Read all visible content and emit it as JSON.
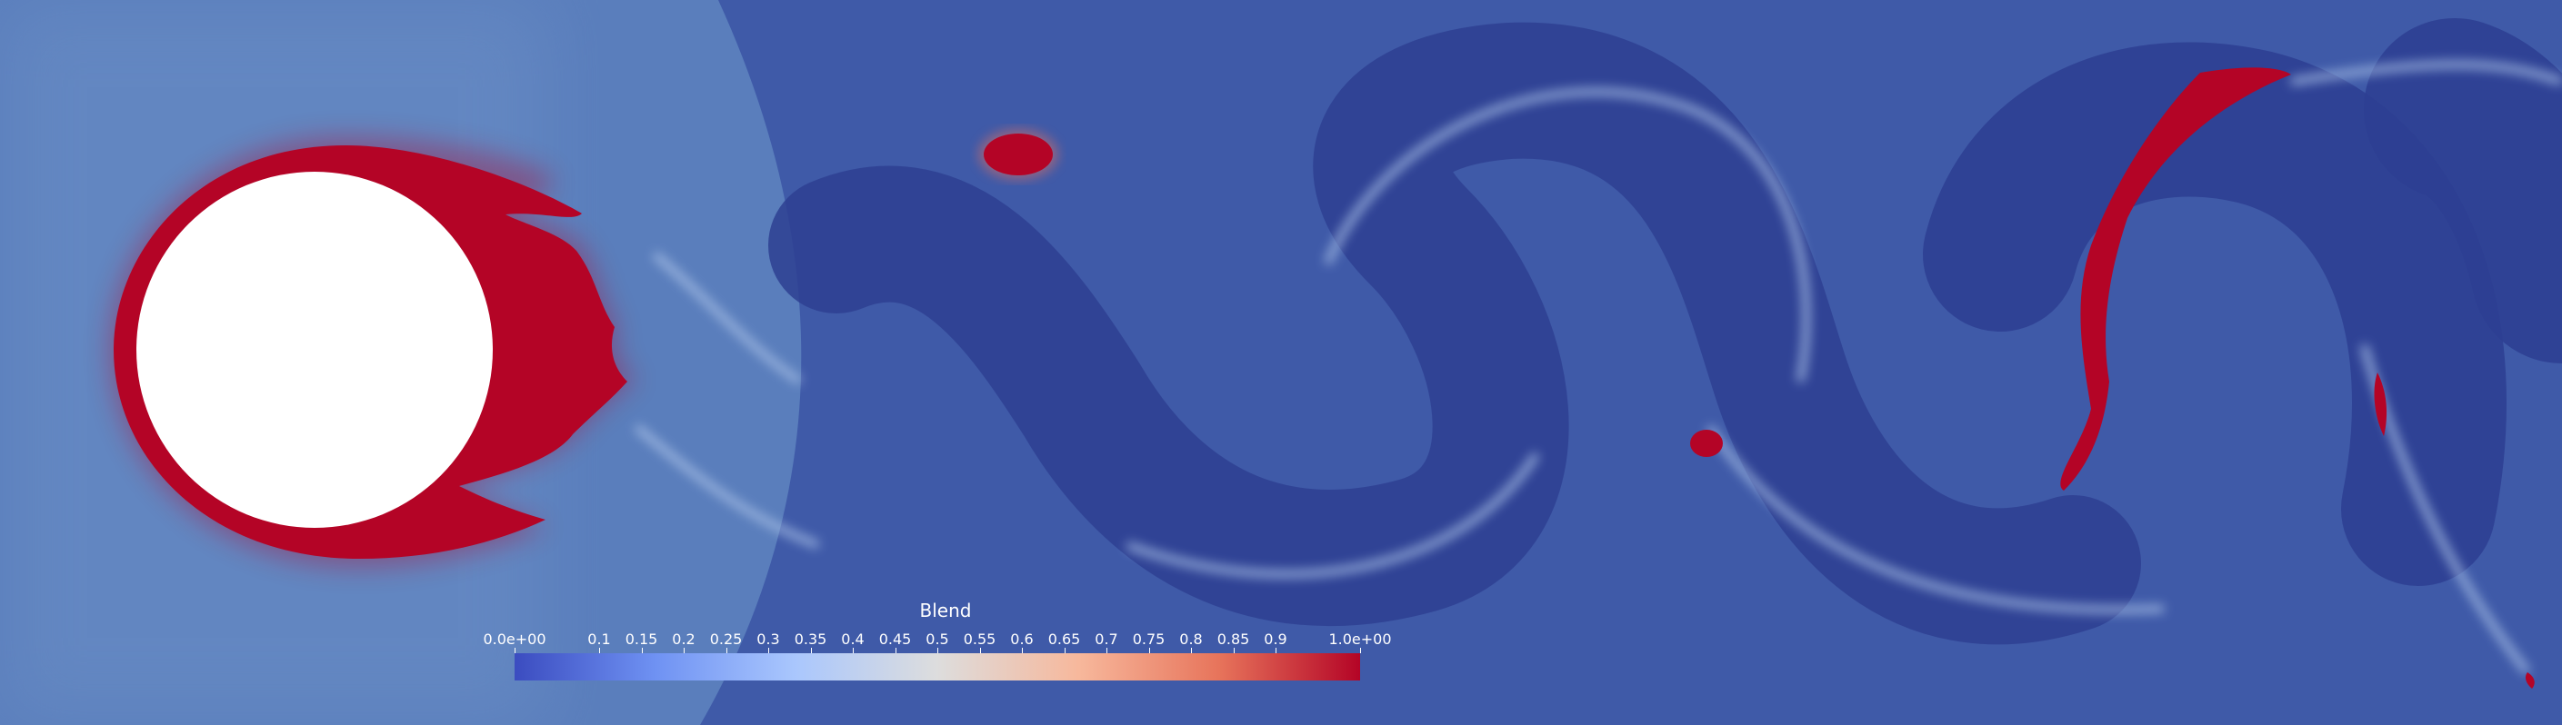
{
  "colorbar": {
    "title": "Blend",
    "ticks": [
      "0.0e+00",
      "0.1",
      "0.15",
      "0.2",
      "0.25",
      "0.3",
      "0.35",
      "0.4",
      "0.45",
      "0.5",
      "0.55",
      "0.6",
      "0.65",
      "0.7",
      "0.75",
      "0.8",
      "0.85",
      "0.9",
      "1.0e+00"
    ],
    "colormap": [
      "#3b4cc0",
      "#6f92f3",
      "#aac7fd",
      "#dddddd",
      "#f7b89c",
      "#e7745b",
      "#b40426"
    ]
  }
}
